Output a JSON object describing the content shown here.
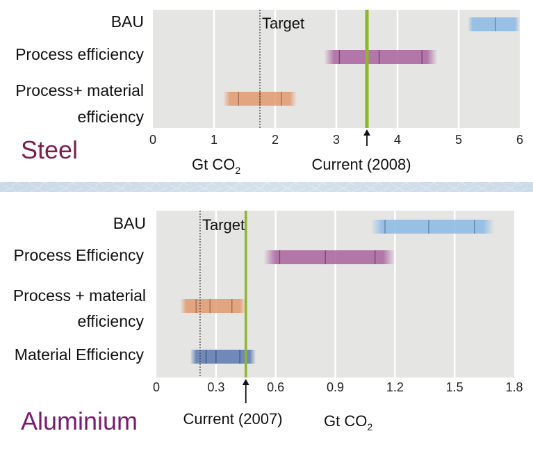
{
  "chart_data": [
    {
      "type": "bar",
      "title": "Steel",
      "title_color": "#7b1f4f",
      "xlabel": "Gt CO",
      "xlabel_subscript": "2",
      "xlim": [
        0,
        6
      ],
      "x_ticks": [
        "0",
        "1",
        "2",
        "3",
        "4",
        "5",
        "6"
      ],
      "grid": true,
      "categories": [
        "BAU",
        "Process efficiency",
        "Process+ material",
        "efficiency"
      ],
      "series": [
        {
          "category_index": 0,
          "range": [
            5.15,
            6.0
          ],
          "markers": [
            5.6
          ],
          "color": "#8ab9e4"
        },
        {
          "category_index": 1,
          "range": [
            2.8,
            4.65
          ],
          "markers": [
            3.05,
            3.7,
            4.4
          ],
          "color": "#a9629f"
        },
        {
          "category_index": 2,
          "range": [
            1.15,
            2.35
          ],
          "markers": [
            1.4,
            1.75,
            2.1
          ],
          "color": "#e29a70"
        }
      ],
      "target": {
        "label": "Target",
        "value": 1.75
      },
      "current": {
        "label": "Current (2008)",
        "value": 3.5,
        "color": "#8db81f"
      }
    },
    {
      "type": "bar",
      "title": "Aluminium",
      "title_color": "#7b1a73",
      "xlabel": "Gt CO",
      "xlabel_subscript": "2",
      "xlim": [
        0,
        1.8
      ],
      "x_ticks": [
        "0",
        "0.3",
        "0.6",
        "0.9",
        "1.2",
        "1.5",
        "1.8"
      ],
      "grid": true,
      "categories": [
        "BAU",
        "Process Efficiency",
        "Process + material",
        "efficiency",
        "Material Efficiency"
      ],
      "series": [
        {
          "category_index": 0,
          "range": [
            1.08,
            1.7
          ],
          "markers": [
            1.15,
            1.37,
            1.6
          ],
          "color": "#8ab9e4"
        },
        {
          "category_index": 1,
          "range": [
            0.54,
            1.2
          ],
          "markers": [
            0.62,
            0.85,
            1.1
          ],
          "color": "#a9629f"
        },
        {
          "category_index": 2,
          "range": [
            0.12,
            0.45
          ],
          "markers": [
            0.2,
            0.27,
            0.38
          ],
          "color": "#e29a70"
        },
        {
          "category_index": 3,
          "range": [
            0.17,
            0.5
          ],
          "markers": [
            0.25,
            0.3,
            0.42
          ],
          "color": "#5c79b0"
        }
      ],
      "target": {
        "label": "Target",
        "value": 0.22
      },
      "current": {
        "label": "Current (2007)",
        "value": 0.45,
        "color": "#8db81f"
      }
    }
  ]
}
